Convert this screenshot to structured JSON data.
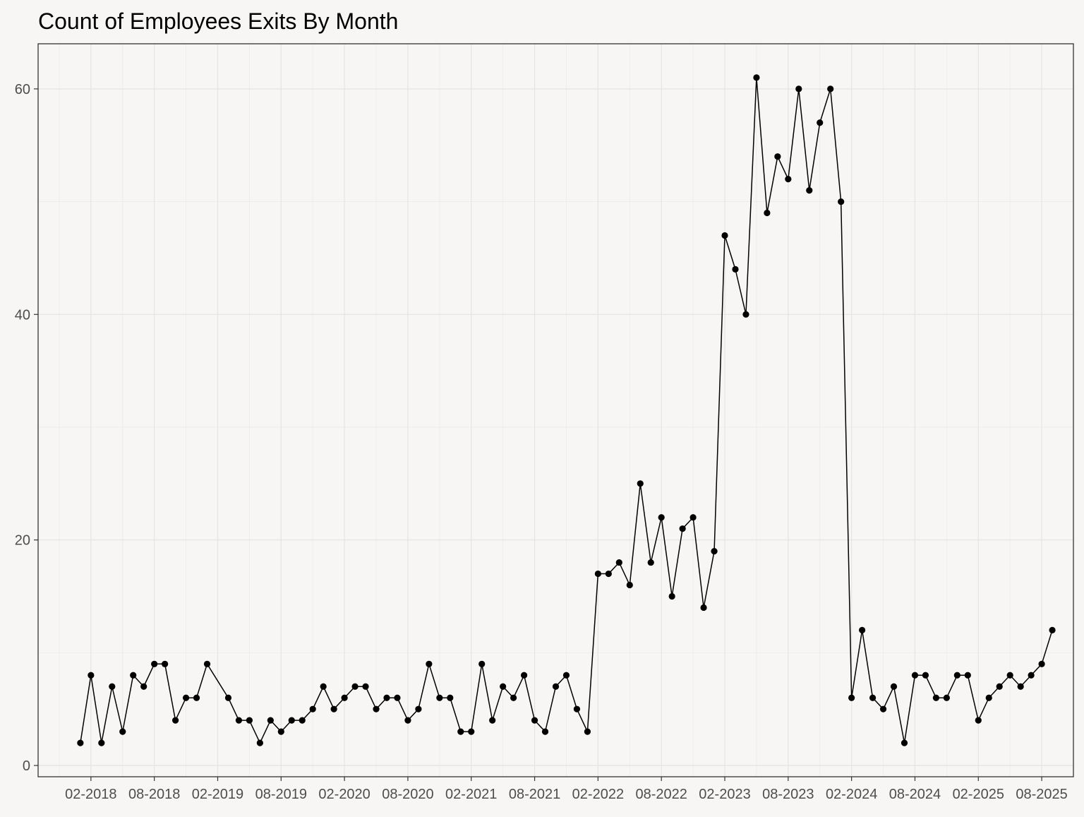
{
  "chart_data": {
    "type": "line",
    "title": "Count of Employees Exits By Month",
    "xlabel": "",
    "ylabel": "",
    "x_tick_labels": [
      "02-2018",
      "08-2018",
      "02-2019",
      "08-2019",
      "02-2020",
      "08-2020",
      "02-2021",
      "08-2021",
      "02-2022",
      "08-2022",
      "02-2023",
      "08-2023",
      "02-2024",
      "08-2024",
      "02-2025",
      "08-2025"
    ],
    "y_ticks": [
      0,
      20,
      40,
      60
    ],
    "xlim": [
      "2017-09",
      "2025-11"
    ],
    "ylim": [
      -1,
      64
    ],
    "grid": true,
    "markers": true,
    "series": [
      {
        "x": [
          "2018-01",
          "2018-02",
          "2018-03",
          "2018-04",
          "2018-05",
          "2018-06",
          "2018-07",
          "2018-08",
          "2018-09",
          "2018-10",
          "2018-11",
          "2018-12",
          "2019-01",
          "2019-03",
          "2019-04",
          "2019-05",
          "2019-06",
          "2019-07",
          "2019-08",
          "2019-09",
          "2019-10",
          "2019-11",
          "2019-12",
          "2020-01",
          "2020-02",
          "2020-03",
          "2020-04",
          "2020-05",
          "2020-06",
          "2020-07",
          "2020-08",
          "2020-09",
          "2020-10",
          "2020-11",
          "2020-12",
          "2021-01",
          "2021-02",
          "2021-03",
          "2021-04",
          "2021-05",
          "2021-06",
          "2021-07",
          "2021-08",
          "2021-09",
          "2021-10",
          "2021-11",
          "2021-12",
          "2022-01",
          "2022-02",
          "2022-03",
          "2022-04",
          "2022-05",
          "2022-06",
          "2022-07",
          "2022-08",
          "2022-09",
          "2022-10",
          "2022-11",
          "2022-12",
          "2023-01",
          "2023-02",
          "2023-03",
          "2023-04",
          "2023-05",
          "2023-06",
          "2023-07",
          "2023-08",
          "2023-09",
          "2023-10",
          "2023-11",
          "2023-12",
          "2024-01",
          "2024-02",
          "2024-03",
          "2024-04",
          "2024-05",
          "2024-06",
          "2024-07",
          "2024-08",
          "2024-09",
          "2024-10",
          "2024-11",
          "2024-12",
          "2025-01",
          "2025-02",
          "2025-03",
          "2025-04",
          "2025-05",
          "2025-06",
          "2025-07",
          "2025-08",
          "2025-09"
        ],
        "values": [
          2,
          8,
          2,
          7,
          3,
          8,
          7,
          9,
          9,
          4,
          6,
          6,
          9,
          6,
          4,
          4,
          2,
          4,
          3,
          4,
          4,
          5,
          7,
          5,
          6,
          7,
          7,
          5,
          6,
          6,
          4,
          5,
          9,
          6,
          6,
          3,
          3,
          9,
          4,
          7,
          6,
          8,
          4,
          3,
          7,
          8,
          5,
          3,
          17,
          17,
          18,
          16,
          25,
          18,
          22,
          15,
          21,
          22,
          14,
          19,
          47,
          44,
          40,
          61,
          49,
          54,
          52,
          60,
          51,
          57,
          60,
          50,
          6,
          12,
          6,
          5,
          7,
          2,
          8,
          8,
          6,
          6,
          8,
          8,
          4,
          6,
          7,
          8,
          7,
          8,
          9,
          12
        ]
      }
    ]
  }
}
